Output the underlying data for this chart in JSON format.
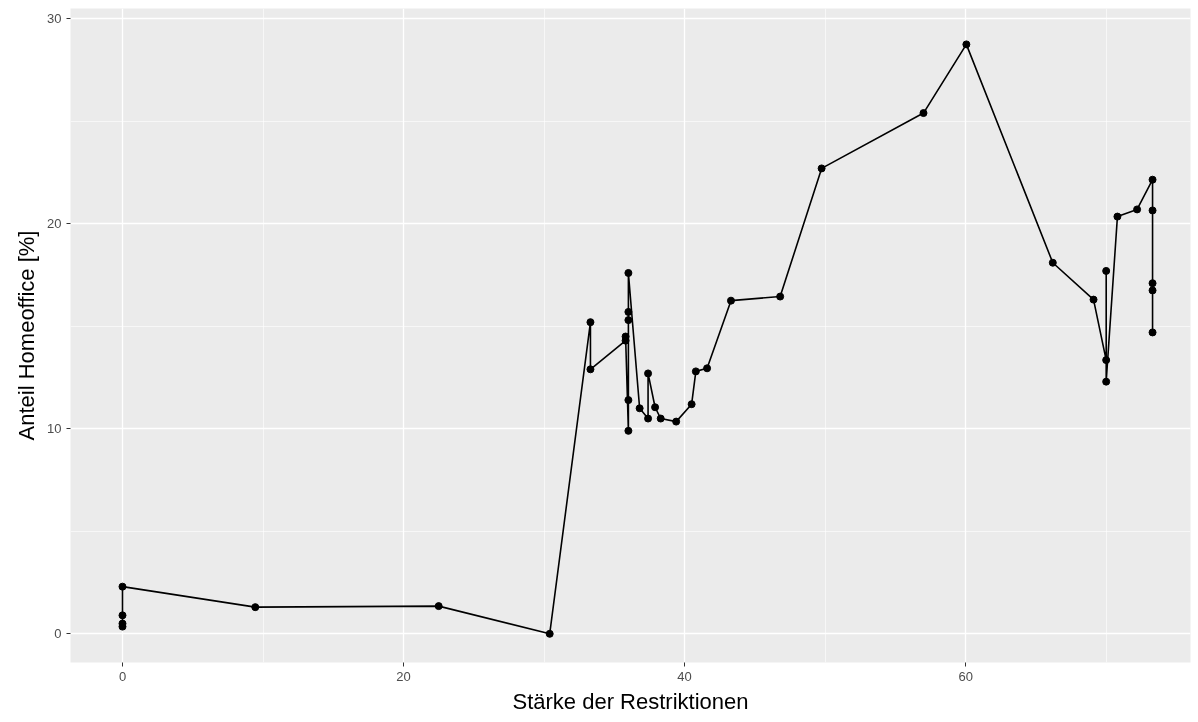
{
  "chart_data": {
    "type": "line",
    "xlabel": "Stärke der Restriktionen",
    "ylabel": "Anteil Homeoffice [%]",
    "marker": "circle",
    "grid": true,
    "xlim": [
      -3.7,
      76.0
    ],
    "ylim": [
      -1.4,
      30.5
    ],
    "xticks": [
      0,
      20,
      40,
      60
    ],
    "yticks": [
      0,
      10,
      20,
      30
    ],
    "series": [
      {
        "color": "#000000",
        "x": [
          0,
          0,
          0,
          0,
          9.45,
          22.5,
          30.4,
          33.3,
          33.3,
          35.8,
          35.8,
          36.0,
          36.0,
          36.0,
          36.0,
          36.0,
          36.8,
          37.4,
          37.4,
          37.9,
          38.3,
          39.4,
          40.5,
          40.8,
          41.6,
          43.3,
          46.8,
          49.75,
          57.0,
          60.05,
          66.2,
          69.1,
          70.0,
          70.0,
          70.0,
          70.8,
          72.2,
          73.3,
          73.3,
          73.3,
          73.3,
          73.3
        ],
        "values": [
          0.35,
          0.5,
          0.9,
          2.3,
          1.3,
          1.35,
          0,
          15.2,
          12.9,
          14.3,
          14.5,
          9.9,
          11.4,
          15.3,
          15.7,
          17.6,
          11.0,
          10.5,
          12.7,
          11.05,
          10.5,
          10.35,
          11.2,
          12.8,
          12.95,
          16.25,
          16.45,
          22.7,
          25.4,
          28.75,
          18.1,
          16.3,
          13.35,
          17.7,
          12.3,
          20.35,
          20.7,
          22.15,
          20.65,
          17.1,
          16.75,
          14.7
        ]
      }
    ]
  }
}
